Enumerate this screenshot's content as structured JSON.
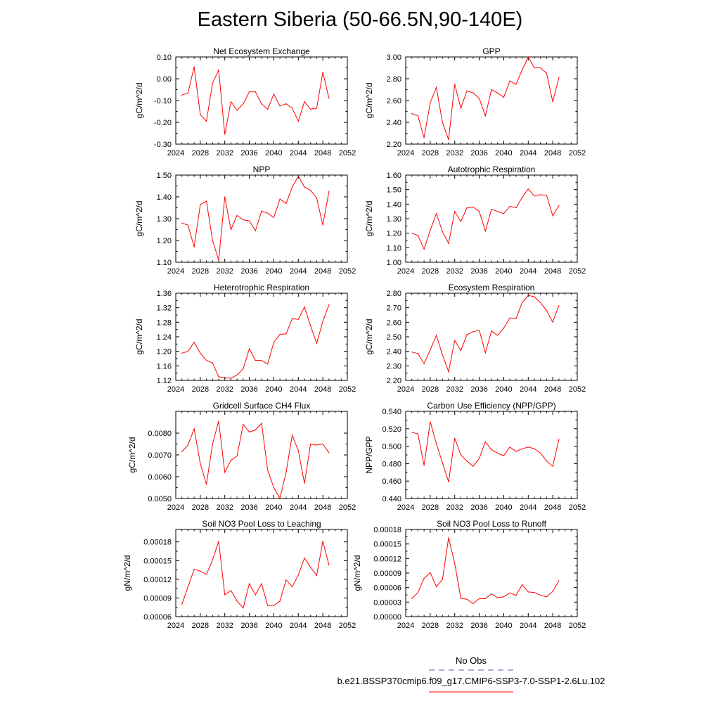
{
  "title": "Eastern Siberia (50-66.5N,90-140E)",
  "colors": {
    "series": "#ff0000",
    "obs": "#5555cc",
    "axis": "#000000"
  },
  "legend": [
    {
      "label": "No Obs",
      "style": "dashed",
      "color": "#5555cc"
    },
    {
      "label": "b.e21.BSSP370cmip6.f09_g17.CMIP6-SSP3-7.0-SSP1-2.6Lu.102",
      "style": "solid",
      "color": "#ff0000"
    }
  ],
  "chart_data": [
    {
      "type": "line",
      "title": "Net Ecosystem Exchange",
      "ylabel": "gC/m^2/d",
      "xlabel": "",
      "xlim": [
        2024,
        2052
      ],
      "xticks": [
        2024,
        2028,
        2032,
        2036,
        2040,
        2044,
        2048,
        2052
      ],
      "ylim": [
        -0.3,
        0.1
      ],
      "yticks": [
        "0.10",
        "0.00",
        "-0.10",
        "-0.20",
        "-0.30"
      ],
      "x": [
        2025,
        2026,
        2027,
        2028,
        2029,
        2030,
        2031,
        2032,
        2033,
        2034,
        2035,
        2036,
        2037,
        2038,
        2039,
        2040,
        2041,
        2042,
        2043,
        2044,
        2045,
        2046,
        2047,
        2048,
        2049
      ],
      "series": [
        {
          "values": [
            -0.075,
            -0.065,
            0.055,
            -0.165,
            -0.195,
            -0.02,
            0.04,
            -0.255,
            -0.105,
            -0.145,
            -0.115,
            -0.06,
            -0.06,
            -0.115,
            -0.14,
            -0.07,
            -0.125,
            -0.115,
            -0.135,
            -0.195,
            -0.105,
            -0.14,
            -0.135,
            0.03,
            -0.09
          ]
        }
      ]
    },
    {
      "type": "line",
      "title": "GPP",
      "ylabel": "gC/m^2/d",
      "xlabel": "",
      "xlim": [
        2024,
        2052
      ],
      "xticks": [
        2024,
        2028,
        2032,
        2036,
        2040,
        2044,
        2048,
        2052
      ],
      "ylim": [
        2.2,
        3.0
      ],
      "yticks": [
        "3.00",
        "2.80",
        "2.60",
        "2.40",
        "2.20"
      ],
      "x": [
        2025,
        2026,
        2027,
        2028,
        2029,
        2030,
        2031,
        2032,
        2033,
        2034,
        2035,
        2036,
        2037,
        2038,
        2039,
        2040,
        2041,
        2042,
        2043,
        2044,
        2045,
        2046,
        2047,
        2048,
        2049
      ],
      "series": [
        {
          "values": [
            2.48,
            2.46,
            2.26,
            2.58,
            2.72,
            2.4,
            2.24,
            2.75,
            2.53,
            2.69,
            2.67,
            2.62,
            2.46,
            2.7,
            2.67,
            2.63,
            2.78,
            2.75,
            2.88,
            3.0,
            2.9,
            2.9,
            2.85,
            2.59,
            2.81
          ]
        }
      ]
    },
    {
      "type": "line",
      "title": "NPP",
      "ylabel": "gC/m^2/d",
      "xlabel": "",
      "xlim": [
        2024,
        2052
      ],
      "xticks": [
        2024,
        2028,
        2032,
        2036,
        2040,
        2044,
        2048,
        2052
      ],
      "ylim": [
        1.1,
        1.5
      ],
      "yticks": [
        "1.50",
        "1.40",
        "1.30",
        "1.20",
        "1.10"
      ],
      "x": [
        2025,
        2026,
        2027,
        2028,
        2029,
        2030,
        2031,
        2032,
        2033,
        2034,
        2035,
        2036,
        2037,
        2038,
        2039,
        2040,
        2041,
        2042,
        2043,
        2044,
        2045,
        2046,
        2047,
        2048,
        2049
      ],
      "series": [
        {
          "values": [
            1.28,
            1.27,
            1.17,
            1.365,
            1.38,
            1.2,
            1.11,
            1.4,
            1.25,
            1.315,
            1.295,
            1.29,
            1.245,
            1.335,
            1.325,
            1.305,
            1.39,
            1.37,
            1.445,
            1.495,
            1.445,
            1.43,
            1.395,
            1.27,
            1.425
          ]
        }
      ]
    },
    {
      "type": "line",
      "title": "Autotrophic Respiration",
      "ylabel": "gC/m^2/d",
      "xlabel": "",
      "xlim": [
        2024,
        2052
      ],
      "xticks": [
        2024,
        2028,
        2032,
        2036,
        2040,
        2044,
        2048,
        2052
      ],
      "ylim": [
        1.0,
        1.6
      ],
      "yticks": [
        "1.60",
        "1.50",
        "1.40",
        "1.30",
        "1.20",
        "1.10",
        "1.00"
      ],
      "x": [
        2025,
        2026,
        2027,
        2028,
        2029,
        2030,
        2031,
        2032,
        2033,
        2034,
        2035,
        2036,
        2037,
        2038,
        2039,
        2040,
        2041,
        2042,
        2043,
        2044,
        2045,
        2046,
        2047,
        2048,
        2049
      ],
      "series": [
        {
          "values": [
            1.2,
            1.185,
            1.09,
            1.22,
            1.335,
            1.21,
            1.13,
            1.35,
            1.28,
            1.375,
            1.38,
            1.35,
            1.215,
            1.365,
            1.35,
            1.335,
            1.385,
            1.375,
            1.445,
            1.505,
            1.455,
            1.465,
            1.46,
            1.32,
            1.39
          ]
        }
      ]
    },
    {
      "type": "line",
      "title": "Heterotrophic Respiration",
      "ylabel": "gC/m^2/d",
      "xlabel": "",
      "xlim": [
        2024,
        2052
      ],
      "xticks": [
        2024,
        2028,
        2032,
        2036,
        2040,
        2044,
        2048,
        2052
      ],
      "ylim": [
        1.12,
        1.36
      ],
      "yticks": [
        "1.36",
        "1.32",
        "1.28",
        "1.24",
        "1.20",
        "1.16",
        "1.12"
      ],
      "x": [
        2025,
        2026,
        2027,
        2028,
        2029,
        2030,
        2031,
        2032,
        2033,
        2034,
        2035,
        2036,
        2037,
        2038,
        2039,
        2040,
        2041,
        2042,
        2043,
        2044,
        2045,
        2046,
        2047,
        2048,
        2049
      ],
      "series": [
        {
          "values": [
            1.195,
            1.2,
            1.225,
            1.195,
            1.175,
            1.168,
            1.13,
            1.127,
            1.126,
            1.135,
            1.152,
            1.207,
            1.175,
            1.175,
            1.165,
            1.225,
            1.247,
            1.248,
            1.29,
            1.288,
            1.322,
            1.27,
            1.222,
            1.282,
            1.328
          ]
        }
      ]
    },
    {
      "type": "line",
      "title": "Ecosystem Respiration",
      "ylabel": "gC/m^2/d",
      "xlabel": "",
      "xlim": [
        2024,
        2052
      ],
      "xticks": [
        2024,
        2028,
        2032,
        2036,
        2040,
        2044,
        2048,
        2052
      ],
      "ylim": [
        2.2,
        2.8
      ],
      "yticks": [
        "2.80",
        "2.70",
        "2.60",
        "2.50",
        "2.40",
        "2.30",
        "2.20"
      ],
      "x": [
        2025,
        2026,
        2027,
        2028,
        2029,
        2030,
        2031,
        2032,
        2033,
        2034,
        2035,
        2036,
        2037,
        2038,
        2039,
        2040,
        2041,
        2042,
        2043,
        2044,
        2045,
        2046,
        2047,
        2048,
        2049
      ],
      "series": [
        {
          "values": [
            2.395,
            2.385,
            2.315,
            2.41,
            2.51,
            2.375,
            2.26,
            2.475,
            2.405,
            2.515,
            2.535,
            2.545,
            2.39,
            2.54,
            2.51,
            2.56,
            2.63,
            2.625,
            2.735,
            2.785,
            2.775,
            2.735,
            2.68,
            2.6,
            2.715
          ]
        }
      ]
    },
    {
      "type": "line",
      "title": "Gridcell Surface CH4 Flux",
      "ylabel": "gC/m^2/d",
      "xlabel": "",
      "xlim": [
        2024,
        2052
      ],
      "xticks": [
        2024,
        2028,
        2032,
        2036,
        2040,
        2044,
        2048,
        2052
      ],
      "ylim": [
        0.005,
        0.009
      ],
      "yticks": [
        "0.0080",
        "0.0070",
        "0.0060",
        "0.0050"
      ],
      "x": [
        2025,
        2026,
        2027,
        2028,
        2029,
        2030,
        2031,
        2032,
        2033,
        2034,
        2035,
        2036,
        2037,
        2038,
        2039,
        2040,
        2041,
        2042,
        2043,
        2044,
        2045,
        2046,
        2047,
        2048,
        2049
      ],
      "series": [
        {
          "values": [
            0.00715,
            0.00745,
            0.0082,
            0.0066,
            0.00565,
            0.0075,
            0.00855,
            0.0062,
            0.00675,
            0.00695,
            0.0084,
            0.00805,
            0.00815,
            0.00845,
            0.0063,
            0.0055,
            0.005,
            0.0062,
            0.0079,
            0.0072,
            0.0057,
            0.0075,
            0.00745,
            0.0075,
            0.0071
          ]
        }
      ]
    },
    {
      "type": "line",
      "title": "Carbon Use Efficiency (NPP/GPP)",
      "ylabel": "NPP/GPP",
      "xlabel": "",
      "xlim": [
        2024,
        2052
      ],
      "xticks": [
        2024,
        2028,
        2032,
        2036,
        2040,
        2044,
        2048,
        2052
      ],
      "ylim": [
        0.44,
        0.54
      ],
      "yticks": [
        "0.540",
        "0.520",
        "0.500",
        "0.480",
        "0.460",
        "0.440"
      ],
      "x": [
        2025,
        2026,
        2027,
        2028,
        2029,
        2030,
        2031,
        2032,
        2033,
        2034,
        2035,
        2036,
        2037,
        2038,
        2039,
        2040,
        2041,
        2042,
        2043,
        2044,
        2045,
        2046,
        2047,
        2048,
        2049
      ],
      "series": [
        {
          "values": [
            0.516,
            0.514,
            0.478,
            0.528,
            0.503,
            0.481,
            0.459,
            0.509,
            0.49,
            0.483,
            0.477,
            0.486,
            0.505,
            0.496,
            0.492,
            0.489,
            0.499,
            0.494,
            0.497,
            0.499,
            0.497,
            0.492,
            0.483,
            0.477,
            0.508
          ]
        }
      ]
    },
    {
      "type": "line",
      "title": "Soil NO3 Pool Loss to Leaching",
      "ylabel": "gN/m^2/d",
      "xlabel": "",
      "xlim": [
        2024,
        2052
      ],
      "xticks": [
        2024,
        2028,
        2032,
        2036,
        2040,
        2044,
        2048,
        2052
      ],
      "ylim": [
        6e-05,
        0.0002
      ],
      "yticks": [
        "0.00018",
        "0.00015",
        "0.00012",
        "0.00009",
        "0.00006"
      ],
      "x": [
        2025,
        2026,
        2027,
        2028,
        2029,
        2030,
        2031,
        2032,
        2033,
        2034,
        2035,
        2036,
        2037,
        2038,
        2039,
        2040,
        2041,
        2042,
        2043,
        2044,
        2045,
        2046,
        2047,
        2048,
        2049
      ],
      "series": [
        {
          "values": [
            8e-05,
            0.000108,
            0.000136,
            0.000133,
            0.000128,
            0.000151,
            0.000181,
            9.5e-05,
            0.000102,
            8.5e-05,
            7.4e-05,
            0.000113,
            9.5e-05,
            0.000113,
            7.8e-05,
            7.8e-05,
            8.5e-05,
            0.000119,
            0.000108,
            0.000127,
            0.000154,
            0.000139,
            0.000126,
            0.000181,
            0.000143
          ]
        }
      ]
    },
    {
      "type": "line",
      "title": "Soil NO3 Pool Loss to Runoff",
      "ylabel": "gN/m^2/d",
      "xlabel": "",
      "xlim": [
        2024,
        2052
      ],
      "xticks": [
        2024,
        2028,
        2032,
        2036,
        2040,
        2044,
        2048,
        2052
      ],
      "ylim": [
        0.0,
        0.00018
      ],
      "yticks": [
        "0.00018",
        "0.00015",
        "0.00012",
        "0.00009",
        "0.00006",
        "0.00003",
        "0.00000"
      ],
      "x": [
        2025,
        2026,
        2027,
        2028,
        2029,
        2030,
        2031,
        2032,
        2033,
        2034,
        2035,
        2036,
        2037,
        2038,
        2039,
        2040,
        2041,
        2042,
        2043,
        2044,
        2045,
        2046,
        2047,
        2048,
        2049
      ],
      "series": [
        {
          "values": [
            3.7e-05,
            5e-05,
            7.9e-05,
            9.1e-05,
            6.2e-05,
            7.7e-05,
            0.000163,
            0.00011,
            3.8e-05,
            3.6e-05,
            2.7e-05,
            3.7e-05,
            3.7e-05,
            4.7e-05,
            3.9e-05,
            4.1e-05,
            4.9e-05,
            4.4e-05,
            6.6e-05,
            5.1e-05,
            5e-05,
            4.4e-05,
            4.1e-05,
            5.2e-05,
            7.4e-05
          ]
        }
      ]
    }
  ]
}
